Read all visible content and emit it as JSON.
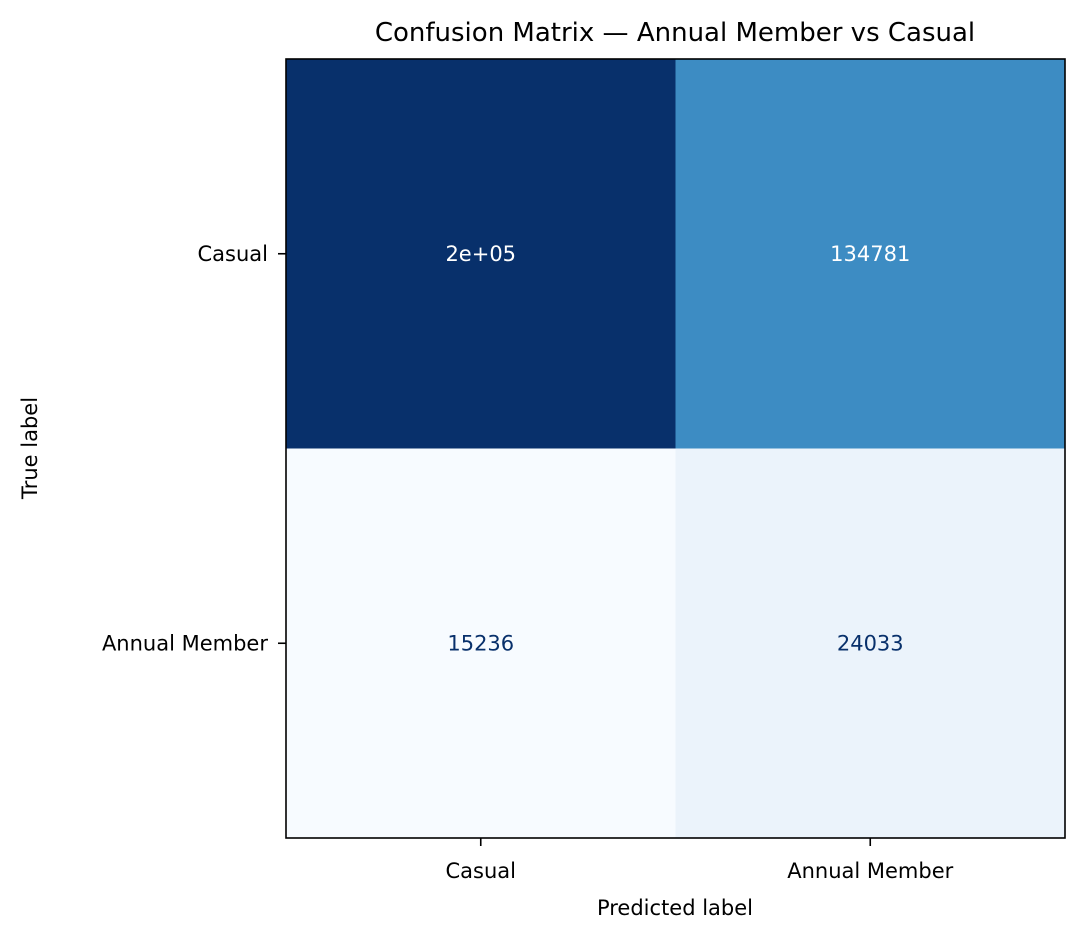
{
  "chart_data": {
    "type": "heatmap",
    "title": "Confusion Matrix — Annual Member vs Casual",
    "xlabel": "Predicted label",
    "ylabel": "True label",
    "x_categories": [
      "Casual",
      "Annual Member"
    ],
    "y_categories": [
      "Casual",
      "Annual Member"
    ],
    "cells": [
      [
        {
          "label": "2e+05",
          "fill": "#08306b",
          "text_color": "#ffffff"
        },
        {
          "label": "134781",
          "fill": "#3d8cc3",
          "text_color": "#ffffff"
        }
      ],
      [
        {
          "label": "15236",
          "fill": "#f7fbff",
          "text_color": "#08306b"
        },
        {
          "label": "24033",
          "fill": "#ebf3fb",
          "text_color": "#08306b"
        }
      ]
    ],
    "colormap": "Blues",
    "grid": false,
    "colorbar": false
  }
}
